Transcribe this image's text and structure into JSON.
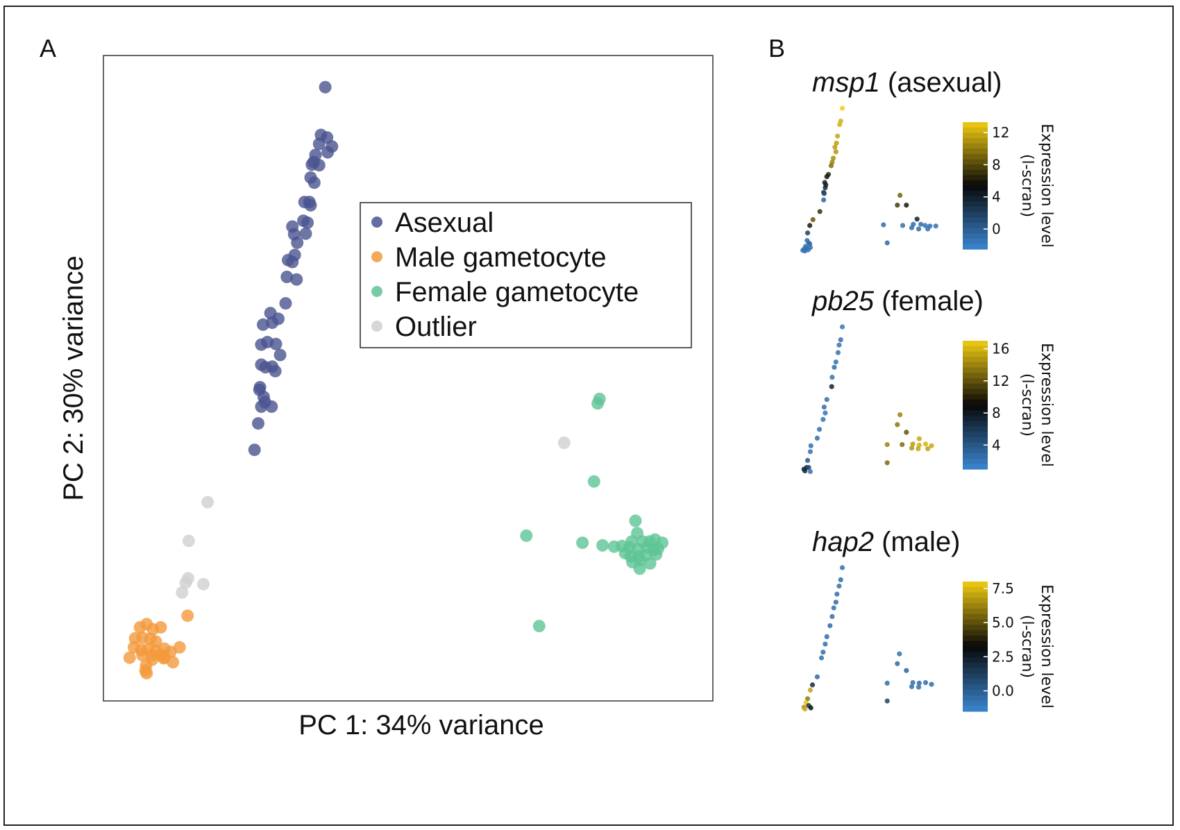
{
  "panel_labels": {
    "a": "A",
    "b": "B"
  },
  "chart_data": [
    {
      "type": "scatter",
      "panel": "A",
      "xlabel": "PC 1: 34% variance",
      "ylabel": "PC 2: 30% variance",
      "xlim": [
        0,
        100
      ],
      "ylim": [
        0,
        100
      ],
      "grid": false,
      "legend_position": "top-right",
      "series": [
        {
          "name": "Asexual",
          "color": "#4a5490",
          "points": [
            [
              36.4,
              95.1
            ],
            [
              35.7,
              87.7
            ],
            [
              36.7,
              87.3
            ],
            [
              37.5,
              85.9
            ],
            [
              35.4,
              86.3
            ],
            [
              36.8,
              85.0
            ],
            [
              34.8,
              84.6
            ],
            [
              34.5,
              83.5
            ],
            [
              35.4,
              83.0
            ],
            [
              34.2,
              83.1
            ],
            [
              34.0,
              81.1
            ],
            [
              34.6,
              80.3
            ],
            [
              33.0,
              77.3
            ],
            [
              33.8,
              77.3
            ],
            [
              34.0,
              76.8
            ],
            [
              32.8,
              74.4
            ],
            [
              33.5,
              74.1
            ],
            [
              33.2,
              72.4
            ],
            [
              31.0,
              73.5
            ],
            [
              31.3,
              72.3
            ],
            [
              31.8,
              71.0
            ],
            [
              31.4,
              69.1
            ],
            [
              30.3,
              68.3
            ],
            [
              31.0,
              68.0
            ],
            [
              30.1,
              65.7
            ],
            [
              31.7,
              65.3
            ],
            [
              29.9,
              61.6
            ],
            [
              27.4,
              60.1
            ],
            [
              27.7,
              58.6
            ],
            [
              28.7,
              59.2
            ],
            [
              26.2,
              58.3
            ],
            [
              25.9,
              55.2
            ],
            [
              26.9,
              55.6
            ],
            [
              28.3,
              55.3
            ],
            [
              29.0,
              53.6
            ],
            [
              25.9,
              52.1
            ],
            [
              26.6,
              51.7
            ],
            [
              27.7,
              51.8
            ],
            [
              28.2,
              51.1
            ],
            [
              25.7,
              48.6
            ],
            [
              25.6,
              48.2
            ],
            [
              26.3,
              47.1
            ],
            [
              26.5,
              46.3
            ],
            [
              27.6,
              45.6
            ],
            [
              25.9,
              45.6
            ],
            [
              25.4,
              43.0
            ],
            [
              24.8,
              38.9
            ]
          ]
        },
        {
          "name": "Male gametocyte",
          "color": "#f29a3c",
          "points": [
            [
              4.3,
              6.7
            ],
            [
              6.0,
              11.4
            ],
            [
              7.1,
              11.9
            ],
            [
              8.1,
              11.1
            ],
            [
              9.4,
              11.4
            ],
            [
              5.2,
              9.7
            ],
            [
              6.4,
              9.8
            ],
            [
              7.7,
              9.6
            ],
            [
              8.6,
              9.2
            ],
            [
              13.8,
              13.2
            ],
            [
              5.0,
              8.3
            ],
            [
              6.2,
              7.9
            ],
            [
              7.3,
              8.0
            ],
            [
              8.6,
              7.8
            ],
            [
              10.0,
              8.1
            ],
            [
              11.0,
              7.6
            ],
            [
              12.5,
              8.3
            ],
            [
              6.4,
              7.1
            ],
            [
              8.0,
              6.4
            ],
            [
              9.9,
              6.6
            ],
            [
              11.4,
              6.0
            ],
            [
              7.0,
              5.5
            ],
            [
              6.9,
              4.7
            ],
            [
              7.1,
              4.3
            ],
            [
              10.0,
              6.8
            ],
            [
              9.4,
              7.1
            ],
            [
              8.0,
              7.1
            ]
          ]
        },
        {
          "name": "Female gametocyte",
          "color": "#5ec495",
          "points": [
            [
              81.4,
              46.8
            ],
            [
              81.1,
              46.1
            ],
            [
              80.5,
              34.0
            ],
            [
              69.4,
              25.6
            ],
            [
              78.6,
              24.5
            ],
            [
              81.9,
              24.1
            ],
            [
              87.3,
              27.9
            ],
            [
              87.6,
              26.0
            ],
            [
              86.7,
              24.7
            ],
            [
              88.5,
              24.7
            ],
            [
              89.6,
              24.7
            ],
            [
              90.5,
              25.0
            ],
            [
              91.7,
              24.5
            ],
            [
              83.8,
              23.9
            ],
            [
              85.1,
              24.0
            ],
            [
              86.3,
              23.8
            ],
            [
              87.7,
              23.5
            ],
            [
              89.2,
              23.8
            ],
            [
              90.3,
              23.4
            ],
            [
              91.0,
              23.6
            ],
            [
              85.6,
              22.9
            ],
            [
              86.5,
              22.4
            ],
            [
              87.8,
              22.4
            ],
            [
              89.0,
              22.6
            ],
            [
              90.7,
              22.7
            ],
            [
              88.0,
              21.8
            ],
            [
              86.8,
              21.5
            ],
            [
              71.5,
              11.6
            ],
            [
              89.7,
              21.3
            ],
            [
              88.0,
              20.5
            ]
          ]
        },
        {
          "name": "Outlier",
          "color": "#d0d0d0",
          "points": [
            [
              75.6,
              40.0
            ],
            [
              17.1,
              30.8
            ],
            [
              14.0,
              24.8
            ],
            [
              13.9,
              19.0
            ],
            [
              13.5,
              18.3
            ],
            [
              16.4,
              18.1
            ],
            [
              12.9,
              16.8
            ]
          ]
        }
      ]
    },
    {
      "type": "scatter",
      "panel": "B",
      "title_italic": "msp1",
      "title_rest": " (asexual)",
      "colorbar": {
        "title": "Expression level\n(l-scran)",
        "min": -2.5,
        "max": 13.3,
        "ticks": [
          "0",
          "4",
          "8",
          "12"
        ],
        "tick_values": [
          0,
          4,
          8,
          12
        ]
      },
      "points": [
        [
          16.0,
          16.0,
          13.3
        ],
        [
          15.7,
          13.8,
          12.2
        ],
        [
          15.5,
          13.2,
          12.2
        ],
        [
          15.1,
          11.2,
          11.8
        ],
        [
          14.9,
          10.0,
          11.5
        ],
        [
          14.6,
          9.3,
          11.3
        ],
        [
          14.8,
          8.5,
          11.1
        ],
        [
          14.3,
          7.4,
          10.8
        ],
        [
          14.1,
          6.7,
          10.3
        ],
        [
          13.9,
          6.1,
          9.5
        ],
        [
          13.4,
          4.6,
          6.5
        ],
        [
          13.1,
          4.2,
          5.8
        ],
        [
          12.7,
          3.2,
          4.5
        ],
        [
          12.8,
          2.3,
          3.5
        ],
        [
          12.9,
          2.8,
          4.0
        ],
        [
          12.5,
          1.5,
          2.5
        ],
        [
          12.6,
          1.3,
          1.5
        ],
        [
          12.5,
          0.2,
          -0.5
        ],
        [
          11.8,
          -1.8,
          7.0
        ],
        [
          10.5,
          -3.2,
          8.5
        ],
        [
          9.9,
          -4.2,
          6.0
        ],
        [
          9.5,
          -5.5,
          1.8
        ],
        [
          9.4,
          -6.8,
          -0.8
        ],
        [
          9.7,
          -7.2,
          -1.0
        ],
        [
          9.1,
          -7.8,
          -1.2
        ],
        [
          9.9,
          -7.4,
          -0.6
        ],
        [
          8.8,
          -8.3,
          -1.3
        ],
        [
          9.3,
          -8.1,
          -1.1
        ],
        [
          10.0,
          -8.0,
          -0.9
        ],
        [
          9.6,
          -8.4,
          -1.2
        ],
        [
          8.6,
          -8.5,
          -1.4
        ],
        [
          9.0,
          -8.6,
          -1.3
        ],
        [
          26.8,
          1.0,
          9.0
        ],
        [
          28.0,
          -0.7,
          6.0
        ],
        [
          26.3,
          -0.7,
          7.5
        ],
        [
          30.0,
          -3.1,
          4.0
        ],
        [
          23.7,
          -4.1,
          -0.9
        ],
        [
          27.3,
          -4.2,
          -1.1
        ],
        [
          29.3,
          -4.0,
          -0.8
        ],
        [
          30.7,
          -4.0,
          -1.0
        ],
        [
          31.5,
          -4.2,
          -1.2
        ],
        [
          32.4,
          -4.3,
          -1.0
        ],
        [
          33.5,
          -4.3,
          -1.1
        ],
        [
          29.0,
          -4.6,
          -1.0
        ],
        [
          30.3,
          -4.8,
          -0.9
        ],
        [
          32.0,
          -4.8,
          -1.2
        ],
        [
          24.4,
          -7.2,
          -0.7
        ]
      ]
    },
    {
      "type": "scatter",
      "panel": "B",
      "title_italic": "pb25",
      "title_rest": " (female)",
      "colorbar": {
        "title": "Expression level\n(l-scran)",
        "min": 1.0,
        "max": 17.0,
        "ticks": [
          "4",
          "8",
          "12",
          "16"
        ],
        "tick_values": [
          4,
          8,
          12,
          16
        ]
      },
      "points": [
        [
          16.0,
          16.0,
          2.0
        ],
        [
          15.7,
          13.8,
          2.5
        ],
        [
          15.4,
          12.9,
          2.2
        ],
        [
          15.2,
          11.6,
          2.4
        ],
        [
          14.8,
          10.0,
          2.3
        ],
        [
          14.5,
          9.1,
          2.6
        ],
        [
          14.1,
          7.4,
          2.2
        ],
        [
          14.0,
          5.8,
          7.5
        ],
        [
          13.1,
          3.6,
          2.4
        ],
        [
          12.6,
          2.3,
          2.5
        ],
        [
          12.8,
          1.3,
          2.2
        ],
        [
          12.4,
          0.2,
          2.1
        ],
        [
          11.7,
          -1.5,
          2.4
        ],
        [
          11.3,
          -3.0,
          2.6
        ],
        [
          10.1,
          -4.3,
          2.5
        ],
        [
          10.0,
          -5.3,
          2.3
        ],
        [
          9.5,
          -6.8,
          4.0
        ],
        [
          9.3,
          -8.0,
          6.5
        ],
        [
          8.8,
          -8.3,
          7.5
        ],
        [
          9.7,
          -8.0,
          5.0
        ],
        [
          9.0,
          -8.6,
          6.8
        ],
        [
          10.0,
          -8.7,
          2.3
        ],
        [
          26.8,
          1.0,
          14.0
        ],
        [
          26.3,
          -0.7,
          13.5
        ],
        [
          28.0,
          -2.0,
          12.0
        ],
        [
          30.4,
          -3.1,
          15.5
        ],
        [
          24.4,
          -4.1,
          14.0
        ],
        [
          27.2,
          -4.1,
          13.0
        ],
        [
          29.2,
          -4.0,
          15.0
        ],
        [
          30.4,
          -4.2,
          15.8
        ],
        [
          31.6,
          -4.0,
          16.0
        ],
        [
          32.7,
          -4.3,
          15.5
        ],
        [
          29.0,
          -4.7,
          14.8
        ],
        [
          30.2,
          -4.8,
          15.5
        ],
        [
          32.0,
          -4.8,
          15.2
        ],
        [
          24.4,
          -7.2,
          13.0
        ]
      ]
    },
    {
      "type": "scatter",
      "panel": "B",
      "title_italic": "hap2",
      "title_rest": " (male)",
      "colorbar": {
        "title": "Expression level\n(l-scran)",
        "min": -1.5,
        "max": 8.0,
        "ticks": [
          "0.0",
          "2.5",
          "5.0",
          "7.5"
        ],
        "tick_values": [
          0.0,
          2.5,
          5.0,
          7.5
        ]
      },
      "points": [
        [
          16.0,
          16.0,
          -0.6
        ],
        [
          15.7,
          13.9,
          -0.5
        ],
        [
          15.4,
          12.8,
          -0.7
        ],
        [
          15.0,
          11.4,
          -0.6
        ],
        [
          14.8,
          10.0,
          -0.5
        ],
        [
          14.4,
          9.0,
          -0.7
        ],
        [
          14.1,
          7.5,
          -0.6
        ],
        [
          13.7,
          5.9,
          -0.5
        ],
        [
          13.1,
          4.0,
          -0.6
        ],
        [
          12.8,
          2.7,
          -0.7
        ],
        [
          12.4,
          1.3,
          -0.5
        ],
        [
          12.1,
          0.3,
          -0.6
        ],
        [
          11.3,
          -3.0,
          -0.5
        ],
        [
          10.4,
          -4.4,
          2.0
        ],
        [
          10.0,
          -5.3,
          7.0
        ],
        [
          9.5,
          -6.8,
          6.0
        ],
        [
          9.2,
          -7.5,
          7.8
        ],
        [
          8.8,
          -8.3,
          6.5
        ],
        [
          9.7,
          -8.0,
          1.8
        ],
        [
          9.0,
          -8.6,
          7.2
        ],
        [
          10.1,
          -8.4,
          3.0
        ],
        [
          26.7,
          1.0,
          -0.6
        ],
        [
          26.3,
          -0.7,
          -0.4
        ],
        [
          28.0,
          -1.9,
          -0.2
        ],
        [
          24.4,
          -4.1,
          -0.6
        ],
        [
          29.2,
          -4.0,
          -0.7
        ],
        [
          30.4,
          -4.1,
          -0.5
        ],
        [
          31.6,
          -4.0,
          -0.6
        ],
        [
          32.7,
          -4.3,
          -0.5
        ],
        [
          29.0,
          -4.7,
          -0.6
        ],
        [
          30.3,
          -4.8,
          -0.7
        ],
        [
          24.4,
          -7.2,
          1.0
        ]
      ]
    }
  ]
}
